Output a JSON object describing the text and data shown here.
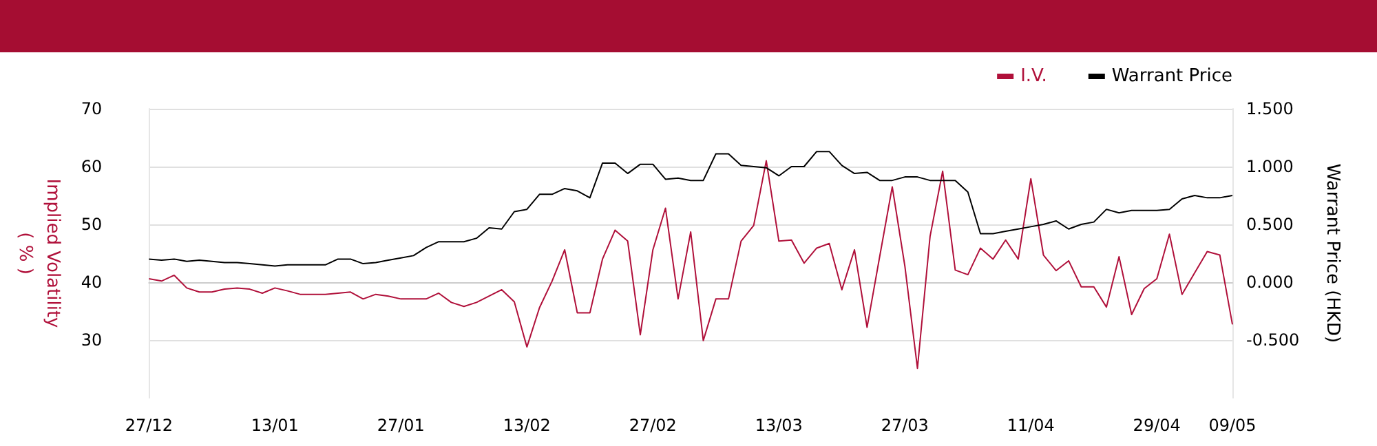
{
  "chart_data": {
    "type": "line",
    "ylabel": "Implied Volatility\n( % )",
    "y2label": "Warrant Price (HKD)",
    "categories": [
      "27/12",
      null,
      null,
      null,
      null,
      null,
      null,
      null,
      null,
      null,
      "13/01",
      null,
      null,
      null,
      null,
      null,
      null,
      null,
      null,
      null,
      "27/01",
      null,
      null,
      null,
      null,
      null,
      null,
      null,
      null,
      null,
      "13/02",
      null,
      null,
      null,
      null,
      null,
      null,
      null,
      null,
      null,
      "27/02",
      null,
      null,
      null,
      null,
      null,
      null,
      null,
      null,
      null,
      "13/03",
      null,
      null,
      null,
      null,
      null,
      null,
      null,
      null,
      null,
      "27/03",
      null,
      null,
      null,
      null,
      null,
      null,
      null,
      null,
      null,
      "11/04",
      null,
      null,
      null,
      null,
      null,
      null,
      null,
      null,
      null,
      "29/04",
      null,
      null,
      null,
      null,
      null,
      "09/05"
    ],
    "series": [
      {
        "name": "I.V.",
        "color": "#b0103a",
        "values": [
          40.6,
          40.2,
          41.2,
          39.0,
          38.3,
          38.3,
          38.8,
          39.0,
          38.8,
          38.1,
          39.0,
          38.5,
          37.9,
          37.9,
          37.9,
          38.1,
          38.3,
          37.1,
          37.9,
          37.6,
          37.1,
          37.1,
          37.1,
          38.1,
          36.5,
          35.8,
          36.5,
          37.6,
          38.7,
          36.6,
          28.8,
          35.6,
          40.2,
          45.6,
          34.7,
          34.7,
          44.0,
          49.0,
          47.1,
          30.9,
          45.6,
          52.8,
          37.1,
          48.7,
          29.9,
          37.1,
          37.1,
          47.1,
          49.8,
          61.0,
          47.1,
          47.3,
          43.3,
          45.9,
          46.7,
          38.7,
          45.6,
          32.2,
          44.4,
          56.5,
          42.8,
          25.1,
          47.9,
          59.2,
          42.1,
          41.3,
          45.9,
          44.0,
          47.3,
          44.0,
          57.9,
          44.7,
          42.0,
          43.7,
          39.2,
          39.2,
          35.7,
          44.4,
          34.4,
          38.9,
          40.6,
          48.3,
          37.9,
          41.6,
          45.3,
          44.7,
          32.7
        ]
      },
      {
        "name": "Warrant Price",
        "color": "#000000",
        "axis": "y2",
        "values": [
          0.2,
          0.19,
          0.2,
          0.18,
          0.19,
          0.18,
          0.17,
          0.17,
          0.16,
          0.15,
          0.14,
          0.15,
          0.15,
          0.15,
          0.15,
          0.2,
          0.2,
          0.16,
          0.17,
          0.19,
          0.21,
          0.23,
          0.3,
          0.35,
          0.35,
          0.35,
          0.38,
          0.47,
          0.46,
          0.61,
          0.63,
          0.76,
          0.76,
          0.81,
          0.79,
          0.73,
          1.03,
          1.03,
          0.94,
          1.02,
          1.02,
          0.89,
          0.9,
          0.88,
          0.88,
          1.11,
          1.11,
          1.01,
          1.0,
          0.99,
          0.92,
          1.0,
          1.0,
          1.13,
          1.13,
          1.01,
          0.94,
          0.95,
          0.88,
          0.88,
          0.91,
          0.91,
          0.88,
          0.88,
          0.88,
          0.78,
          0.42,
          0.42,
          0.44,
          0.46,
          0.48,
          0.5,
          0.53,
          0.46,
          0.5,
          0.52,
          0.63,
          0.6,
          0.62,
          0.62,
          0.62,
          0.63,
          0.72,
          0.75,
          0.73,
          0.73,
          0.75
        ]
      }
    ],
    "ylim": [
      20,
      70
    ],
    "yticks": [
      30,
      40,
      50,
      60,
      70
    ],
    "y2lim": [
      -1,
      1.5
    ],
    "y2ticks": [
      {
        "value": -0.5,
        "label": "-0.500"
      },
      {
        "value": 0,
        "label": "0.000"
      },
      {
        "value": 0.5,
        "label": "0.500"
      },
      {
        "value": 1,
        "label": "1.000"
      },
      {
        "value": 1.5,
        "label": "1.500"
      }
    ],
    "grid": "y",
    "legend": "top right",
    "marker": "none",
    "line_style": "solid"
  }
}
